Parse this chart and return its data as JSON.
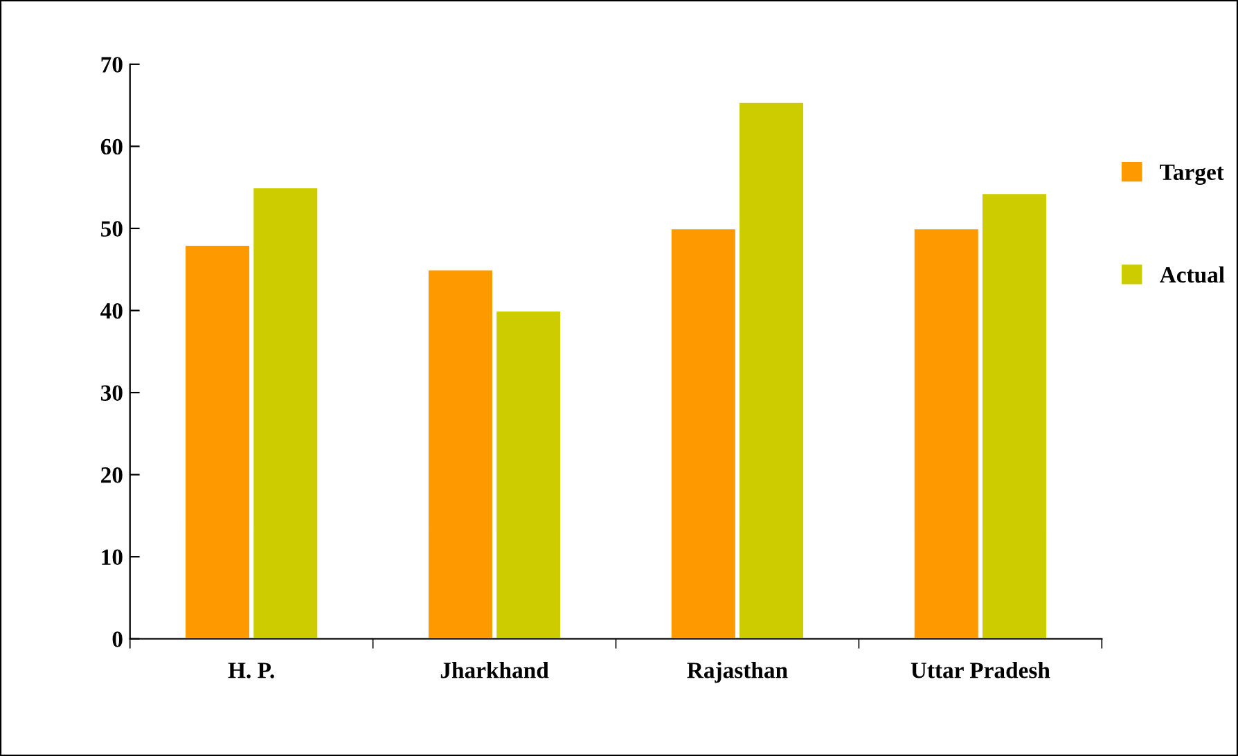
{
  "chart_data": {
    "type": "bar",
    "categories": [
      "H. P.",
      "Jharkhand",
      "Rajasthan",
      "Uttar Pradesh"
    ],
    "series": [
      {
        "name": "Target",
        "color": "#ff9900",
        "values": [
          48,
          45,
          50,
          50
        ]
      },
      {
        "name": "Actual",
        "color": "#cccc00",
        "values": [
          55,
          40,
          65.4,
          54.3
        ]
      }
    ],
    "ylim": [
      0,
      70
    ],
    "yticks": [
      0,
      10,
      20,
      30,
      40,
      50,
      60,
      70
    ],
    "grid": false,
    "legend": "right"
  }
}
